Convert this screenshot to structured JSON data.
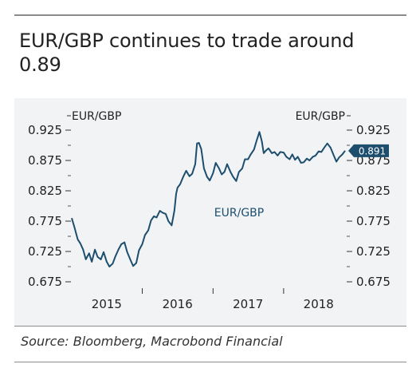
{
  "header": {
    "title": "EUR/GBP continues to trade around 0.89"
  },
  "footer": {
    "source": "Source: Bloomberg, Macrobond Financial"
  },
  "chart_data": {
    "type": "line",
    "title": "EUR/GBP continues to trade around 0.89",
    "left_axis_title": "EUR/GBP",
    "right_axis_title": "EUR/GBP",
    "series_label": "EUR/GBP",
    "line_color": "#1d4e6e",
    "ylim": [
      0.675,
      0.925
    ],
    "y_ticks": [
      "0.925",
      "0.875",
      "0.825",
      "0.775",
      "0.725",
      "0.675"
    ],
    "y_tick_values": [
      0.925,
      0.875,
      0.825,
      0.775,
      0.725,
      0.675
    ],
    "x_ticks": [
      "2015",
      "2016",
      "2017",
      "2018"
    ],
    "xlim": [
      "2015-01-01",
      "2018-11-15"
    ],
    "last_value_label": "0.891",
    "series": [
      {
        "name": "EUR/GBP",
        "points": [
          [
            "2015-01-01",
            0.78
          ],
          [
            "2015-01-15",
            0.765
          ],
          [
            "2015-02-01",
            0.745
          ],
          [
            "2015-02-15",
            0.738
          ],
          [
            "2015-03-01",
            0.728
          ],
          [
            "2015-03-15",
            0.712
          ],
          [
            "2015-04-01",
            0.722
          ],
          [
            "2015-04-15",
            0.708
          ],
          [
            "2015-05-01",
            0.728
          ],
          [
            "2015-05-15",
            0.716
          ],
          [
            "2015-06-01",
            0.712
          ],
          [
            "2015-06-15",
            0.724
          ],
          [
            "2015-07-01",
            0.708
          ],
          [
            "2015-07-15",
            0.7
          ],
          [
            "2015-08-01",
            0.705
          ],
          [
            "2015-08-15",
            0.717
          ],
          [
            "2015-09-01",
            0.729
          ],
          [
            "2015-09-15",
            0.737
          ],
          [
            "2015-10-01",
            0.74
          ],
          [
            "2015-10-15",
            0.724
          ],
          [
            "2015-11-01",
            0.711
          ],
          [
            "2015-11-15",
            0.701
          ],
          [
            "2015-12-01",
            0.706
          ],
          [
            "2015-12-15",
            0.727
          ],
          [
            "2016-01-01",
            0.737
          ],
          [
            "2016-01-15",
            0.752
          ],
          [
            "2016-02-01",
            0.76
          ],
          [
            "2016-02-15",
            0.776
          ],
          [
            "2016-03-01",
            0.783
          ],
          [
            "2016-03-15",
            0.781
          ],
          [
            "2016-04-01",
            0.792
          ],
          [
            "2016-04-15",
            0.789
          ],
          [
            "2016-05-01",
            0.787
          ],
          [
            "2016-05-15",
            0.775
          ],
          [
            "2016-06-01",
            0.768
          ],
          [
            "2016-06-15",
            0.792
          ],
          [
            "2016-06-24",
            0.82
          ],
          [
            "2016-07-01",
            0.83
          ],
          [
            "2016-07-15",
            0.836
          ],
          [
            "2016-08-01",
            0.849
          ],
          [
            "2016-08-15",
            0.858
          ],
          [
            "2016-09-01",
            0.849
          ],
          [
            "2016-09-15",
            0.853
          ],
          [
            "2016-10-01",
            0.869
          ],
          [
            "2016-10-10",
            0.903
          ],
          [
            "2016-10-20",
            0.904
          ],
          [
            "2016-11-01",
            0.894
          ],
          [
            "2016-11-15",
            0.862
          ],
          [
            "2016-12-01",
            0.848
          ],
          [
            "2016-12-15",
            0.842
          ],
          [
            "2017-01-01",
            0.854
          ],
          [
            "2017-01-15",
            0.871
          ],
          [
            "2017-02-01",
            0.862
          ],
          [
            "2017-02-15",
            0.852
          ],
          [
            "2017-03-01",
            0.856
          ],
          [
            "2017-03-15",
            0.869
          ],
          [
            "2017-04-01",
            0.856
          ],
          [
            "2017-04-15",
            0.848
          ],
          [
            "2017-05-01",
            0.841
          ],
          [
            "2017-05-15",
            0.856
          ],
          [
            "2017-06-01",
            0.862
          ],
          [
            "2017-06-15",
            0.877
          ],
          [
            "2017-07-01",
            0.877
          ],
          [
            "2017-07-15",
            0.885
          ],
          [
            "2017-08-01",
            0.893
          ],
          [
            "2017-08-15",
            0.908
          ],
          [
            "2017-08-29",
            0.922
          ],
          [
            "2017-09-10",
            0.907
          ],
          [
            "2017-09-20",
            0.887
          ],
          [
            "2017-10-01",
            0.891
          ],
          [
            "2017-10-15",
            0.895
          ],
          [
            "2017-11-01",
            0.887
          ],
          [
            "2017-11-15",
            0.889
          ],
          [
            "2017-12-01",
            0.883
          ],
          [
            "2017-12-15",
            0.889
          ],
          [
            "2018-01-01",
            0.888
          ],
          [
            "2018-01-15",
            0.881
          ],
          [
            "2018-02-01",
            0.877
          ],
          [
            "2018-02-15",
            0.885
          ],
          [
            "2018-03-01",
            0.876
          ],
          [
            "2018-03-15",
            0.881
          ],
          [
            "2018-04-01",
            0.871
          ],
          [
            "2018-04-15",
            0.872
          ],
          [
            "2018-05-01",
            0.878
          ],
          [
            "2018-05-15",
            0.875
          ],
          [
            "2018-06-01",
            0.881
          ],
          [
            "2018-06-15",
            0.883
          ],
          [
            "2018-07-01",
            0.89
          ],
          [
            "2018-07-15",
            0.889
          ],
          [
            "2018-08-01",
            0.897
          ],
          [
            "2018-08-15",
            0.903
          ],
          [
            "2018-09-01",
            0.896
          ],
          [
            "2018-09-15",
            0.885
          ],
          [
            "2018-10-01",
            0.873
          ],
          [
            "2018-10-15",
            0.88
          ],
          [
            "2018-11-01",
            0.885
          ],
          [
            "2018-11-15",
            0.891
          ]
        ]
      }
    ]
  }
}
